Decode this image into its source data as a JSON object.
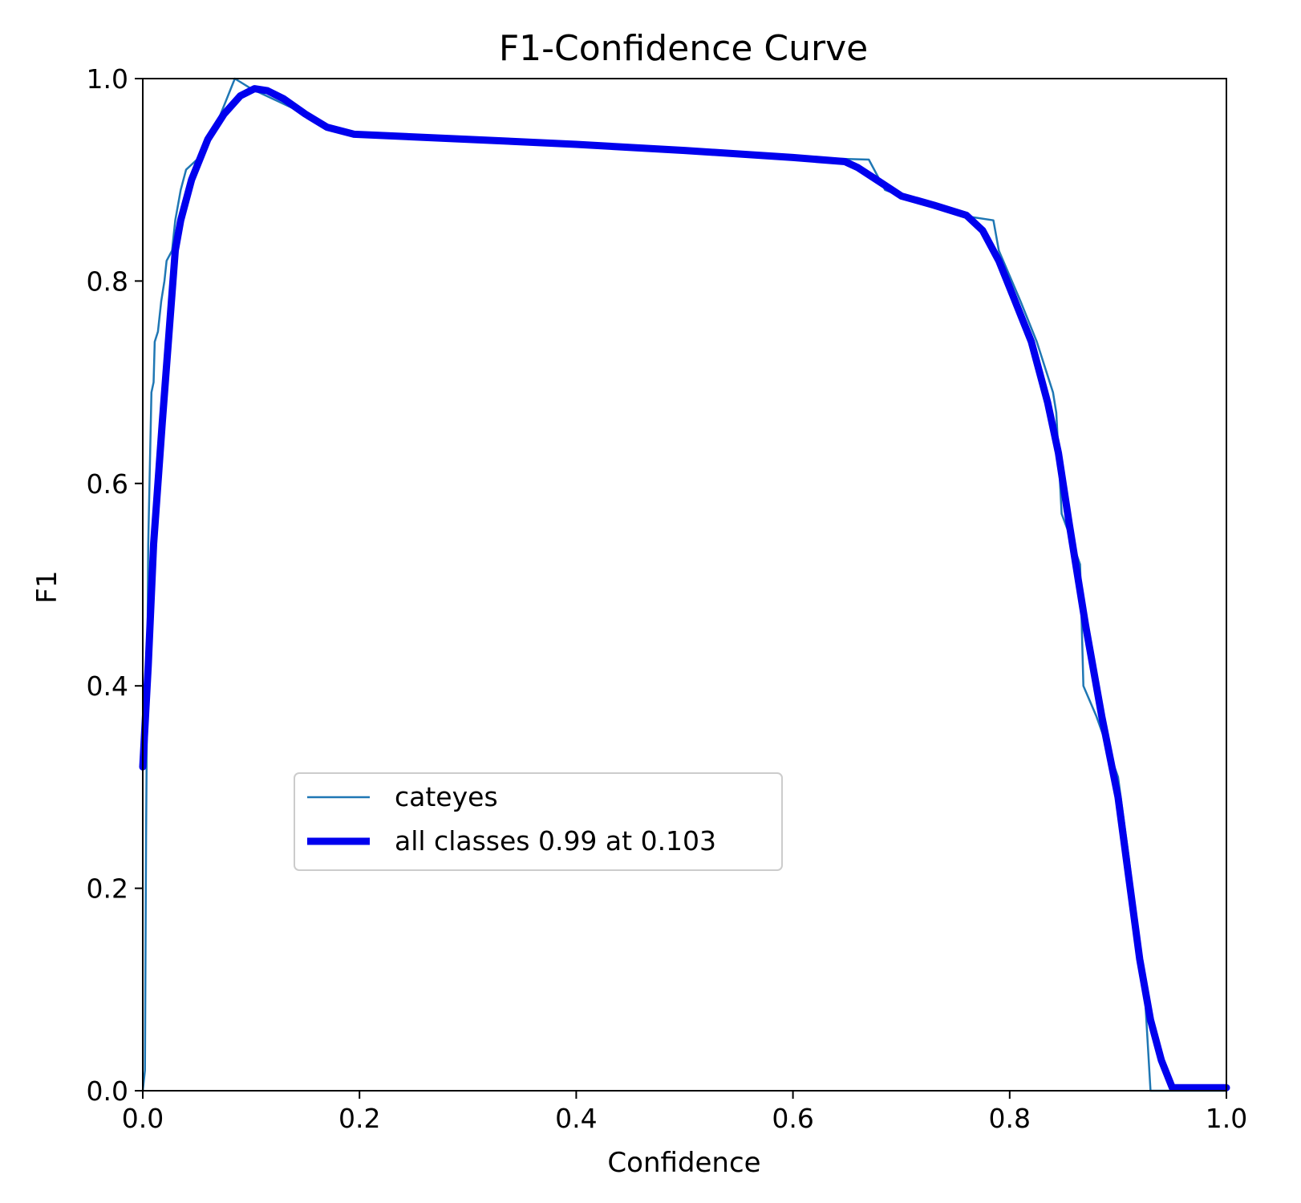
{
  "chart_data": {
    "type": "line",
    "title": "F1-Confidence Curve",
    "xlabel": "Confidence",
    "ylabel": "F1",
    "xlim": [
      0,
      1
    ],
    "ylim": [
      0,
      1
    ],
    "xticks": [
      "0.0",
      "0.2",
      "0.4",
      "0.6",
      "0.8",
      "1.0"
    ],
    "yticks": [
      "0.0",
      "0.2",
      "0.4",
      "0.6",
      "0.8",
      "1.0"
    ],
    "grid": false,
    "legend_position": "center-left",
    "series": [
      {
        "name": "cateyes",
        "color": "#1f77b4",
        "style": "thin",
        "points": [
          [
            0.0,
            0.0
          ],
          [
            0.002,
            0.02
          ],
          [
            0.003,
            0.25
          ],
          [
            0.005,
            0.54
          ],
          [
            0.008,
            0.69
          ],
          [
            0.01,
            0.7
          ],
          [
            0.011,
            0.74
          ],
          [
            0.014,
            0.75
          ],
          [
            0.017,
            0.78
          ],
          [
            0.02,
            0.8
          ],
          [
            0.022,
            0.82
          ],
          [
            0.027,
            0.83
          ],
          [
            0.03,
            0.86
          ],
          [
            0.035,
            0.89
          ],
          [
            0.04,
            0.91
          ],
          [
            0.05,
            0.92
          ],
          [
            0.07,
            0.96
          ],
          [
            0.085,
            1.0
          ],
          [
            0.1,
            0.99
          ],
          [
            0.12,
            0.98
          ],
          [
            0.14,
            0.97
          ],
          [
            0.17,
            0.95
          ],
          [
            0.2,
            0.945
          ],
          [
            0.4,
            0.935
          ],
          [
            0.6,
            0.922
          ],
          [
            0.67,
            0.92
          ],
          [
            0.685,
            0.89
          ],
          [
            0.7,
            0.884
          ],
          [
            0.76,
            0.864
          ],
          [
            0.785,
            0.86
          ],
          [
            0.79,
            0.83
          ],
          [
            0.81,
            0.78
          ],
          [
            0.825,
            0.74
          ],
          [
            0.84,
            0.69
          ],
          [
            0.843,
            0.67
          ],
          [
            0.848,
            0.57
          ],
          [
            0.855,
            0.55
          ],
          [
            0.865,
            0.52
          ],
          [
            0.868,
            0.4
          ],
          [
            0.88,
            0.37
          ],
          [
            0.9,
            0.31
          ],
          [
            0.91,
            0.23
          ],
          [
            0.925,
            0.09
          ],
          [
            0.93,
            0.0
          ],
          [
            1.0,
            0.0
          ]
        ]
      },
      {
        "name": "all classes 0.99 at 0.103",
        "color": "#0000ee",
        "style": "thick",
        "points": [
          [
            0.0,
            0.32
          ],
          [
            0.005,
            0.42
          ],
          [
            0.01,
            0.54
          ],
          [
            0.018,
            0.66
          ],
          [
            0.025,
            0.76
          ],
          [
            0.03,
            0.83
          ],
          [
            0.035,
            0.86
          ],
          [
            0.045,
            0.9
          ],
          [
            0.06,
            0.94
          ],
          [
            0.075,
            0.965
          ],
          [
            0.09,
            0.983
          ],
          [
            0.103,
            0.99
          ],
          [
            0.115,
            0.988
          ],
          [
            0.13,
            0.98
          ],
          [
            0.15,
            0.965
          ],
          [
            0.17,
            0.952
          ],
          [
            0.195,
            0.945
          ],
          [
            0.3,
            0.94
          ],
          [
            0.4,
            0.935
          ],
          [
            0.5,
            0.929
          ],
          [
            0.6,
            0.922
          ],
          [
            0.648,
            0.918
          ],
          [
            0.66,
            0.912
          ],
          [
            0.68,
            0.898
          ],
          [
            0.7,
            0.884
          ],
          [
            0.73,
            0.875
          ],
          [
            0.76,
            0.865
          ],
          [
            0.775,
            0.85
          ],
          [
            0.79,
            0.82
          ],
          [
            0.805,
            0.78
          ],
          [
            0.82,
            0.74
          ],
          [
            0.835,
            0.68
          ],
          [
            0.845,
            0.63
          ],
          [
            0.855,
            0.56
          ],
          [
            0.87,
            0.46
          ],
          [
            0.885,
            0.37
          ],
          [
            0.9,
            0.29
          ],
          [
            0.91,
            0.21
          ],
          [
            0.92,
            0.13
          ],
          [
            0.93,
            0.07
          ],
          [
            0.94,
            0.03
          ],
          [
            0.95,
            0.003
          ],
          [
            1.0,
            0.003
          ]
        ]
      }
    ]
  }
}
